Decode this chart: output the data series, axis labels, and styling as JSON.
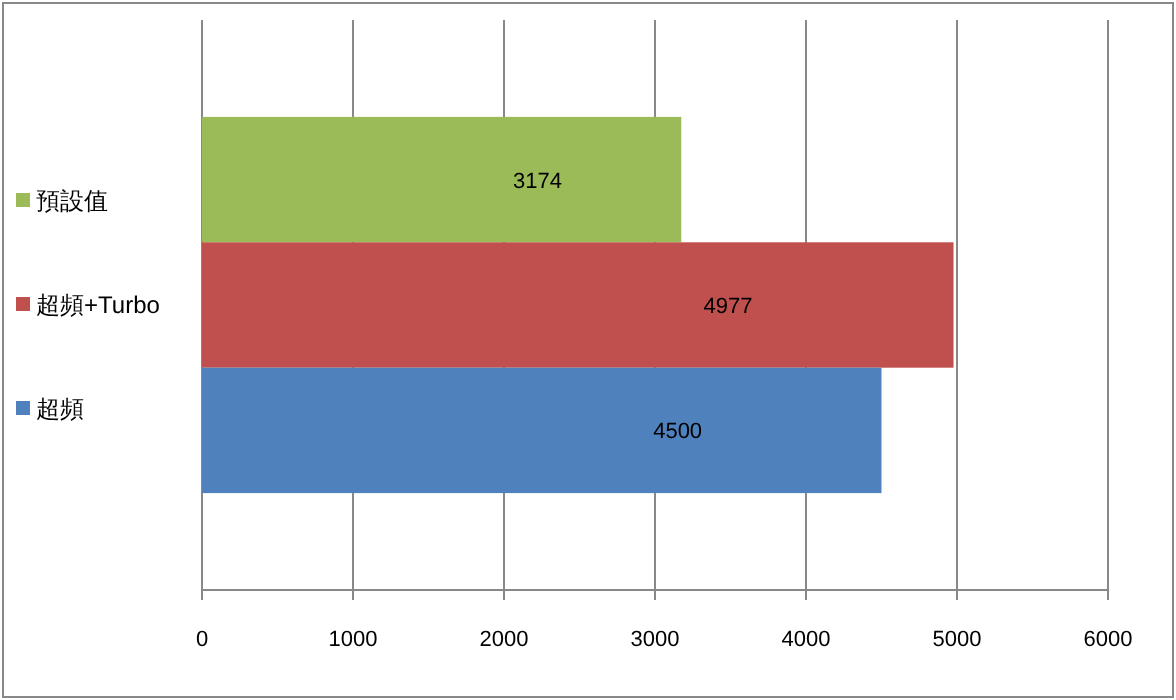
{
  "chart_data": {
    "type": "bar",
    "orientation": "horizontal",
    "categories": [
      null
    ],
    "series": [
      {
        "name": "預設值",
        "color": "#9bbb59",
        "values": [
          3174
        ]
      },
      {
        "name": "超頻+Turbo",
        "color": "#c0504d",
        "values": [
          4977
        ]
      },
      {
        "name": "超頻",
        "color": "#4f81bd",
        "values": [
          4500
        ]
      }
    ],
    "xlim": [
      0,
      6000
    ],
    "xticks": [
      0,
      1000,
      2000,
      3000,
      4000,
      5000,
      6000
    ],
    "grid": "x",
    "legend": "left",
    "data_labels": true
  }
}
